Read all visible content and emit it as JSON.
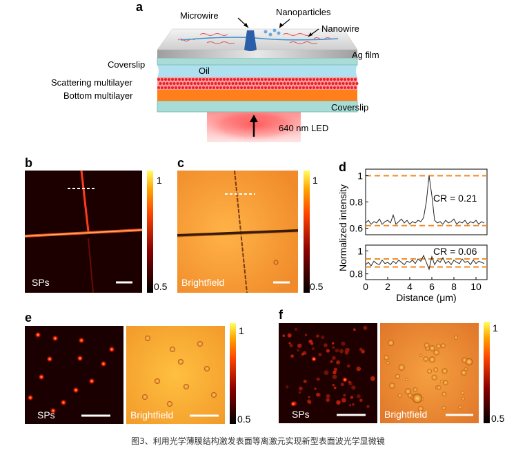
{
  "panels": {
    "a": {
      "letter": "a",
      "labels": {
        "microwire": "Microwire",
        "nanoparticles": "Nanoparticles",
        "nanowire": "Nanowire",
        "ag_film": "Ag film",
        "coverslip_top": "Coverslip",
        "oil": "Oil",
        "scattering": "Scattering multilayer",
        "bottom": "Bottom multilayer",
        "coverslip_bottom": "Coverslip",
        "led": "640 nm LED"
      }
    },
    "b": {
      "letter": "b",
      "image_label": "SPs",
      "cbar_max": "1",
      "cbar_min": "0.5"
    },
    "c": {
      "letter": "c",
      "image_label": "Brightfield",
      "cbar_max": "1",
      "cbar_min": "0.5"
    },
    "d": {
      "letter": "d",
      "ylabel": "Normalized intensity",
      "xlabel": "Distance (μm)",
      "cr_top": "CR = 0.21",
      "cr_bottom": "CR = 0.06"
    },
    "e": {
      "letter": "e",
      "label_left": "SPs",
      "label_right": "Brightfield",
      "cbar_max": "1",
      "cbar_min": "0.5"
    },
    "f": {
      "letter": "f",
      "label_left": "SPs",
      "label_right": "Brightfield",
      "cbar_max": "1",
      "cbar_min": "0.5"
    }
  },
  "caption": "图3、利用光学薄膜结构激发表面等离激元实现新型表面波光学显微镜",
  "chart_data": [
    {
      "type": "line",
      "panel": "d-top",
      "xlabel": "Distance (μm)",
      "ylabel": "Normalized intensity",
      "xlim": [
        0,
        11
      ],
      "ylim": [
        0.55,
        1.05
      ],
      "yticks": [
        "1",
        "0.8",
        "0.6"
      ],
      "yticks_values": [
        1,
        0.8,
        0.6
      ],
      "reference_lines": [
        1.0,
        0.62
      ],
      "x": [
        0,
        0.25,
        0.5,
        0.75,
        1,
        1.25,
        1.5,
        1.75,
        2,
        2.25,
        2.5,
        2.75,
        3,
        3.25,
        3.5,
        3.75,
        4,
        4.25,
        4.5,
        4.75,
        5,
        5.25,
        5.5,
        5.75,
        6,
        6.25,
        6.5,
        6.75,
        7,
        7.25,
        7.5,
        7.75,
        8,
        8.25,
        8.5,
        8.75,
        9,
        9.25,
        9.5,
        9.75,
        10,
        10.25,
        10.5,
        10.75
      ],
      "y": [
        0.64,
        0.66,
        0.63,
        0.65,
        0.64,
        0.67,
        0.63,
        0.65,
        0.66,
        0.64,
        0.7,
        0.63,
        0.65,
        0.67,
        0.64,
        0.66,
        0.63,
        0.65,
        0.64,
        0.66,
        0.65,
        0.68,
        0.8,
        1.0,
        0.85,
        0.66,
        0.64,
        0.65,
        0.63,
        0.66,
        0.64,
        0.65,
        0.67,
        0.63,
        0.65,
        0.64,
        0.66,
        0.63,
        0.65,
        0.64,
        0.66,
        0.63,
        0.65,
        0.64
      ]
    },
    {
      "type": "line",
      "panel": "d-bottom",
      "xlabel": "Distance (μm)",
      "xlim": [
        0,
        11
      ],
      "ylim": [
        0.75,
        1.05
      ],
      "yticks": [
        "1",
        "0.8"
      ],
      "yticks_values": [
        1,
        0.8
      ],
      "xticks": [
        "0",
        "2",
        "4",
        "6",
        "8",
        "10"
      ],
      "xticks_values": [
        0,
        2,
        4,
        6,
        8,
        10
      ],
      "reference_lines": [
        0.93,
        0.86
      ],
      "x": [
        0,
        0.25,
        0.5,
        0.75,
        1,
        1.25,
        1.5,
        1.75,
        2,
        2.25,
        2.5,
        2.75,
        3,
        3.25,
        3.5,
        3.75,
        4,
        4.25,
        4.5,
        4.75,
        5,
        5.25,
        5.5,
        5.75,
        6,
        6.25,
        6.5,
        6.75,
        7,
        7.25,
        7.5,
        7.75,
        8,
        8.25,
        8.5,
        8.75,
        9,
        9.25,
        9.5,
        9.75,
        10,
        10.25,
        10.5,
        10.75
      ],
      "y": [
        0.88,
        0.9,
        0.87,
        0.91,
        0.89,
        0.88,
        0.92,
        0.89,
        0.9,
        0.88,
        0.91,
        0.89,
        0.92,
        0.9,
        0.88,
        0.91,
        0.9,
        0.92,
        0.89,
        0.93,
        0.91,
        0.96,
        0.9,
        0.84,
        0.95,
        0.88,
        0.92,
        0.9,
        0.94,
        0.89,
        0.91,
        0.88,
        0.92,
        0.9,
        0.89,
        0.93,
        0.9,
        0.91,
        0.88,
        0.92,
        0.89,
        0.91,
        0.9,
        0.89
      ]
    }
  ]
}
